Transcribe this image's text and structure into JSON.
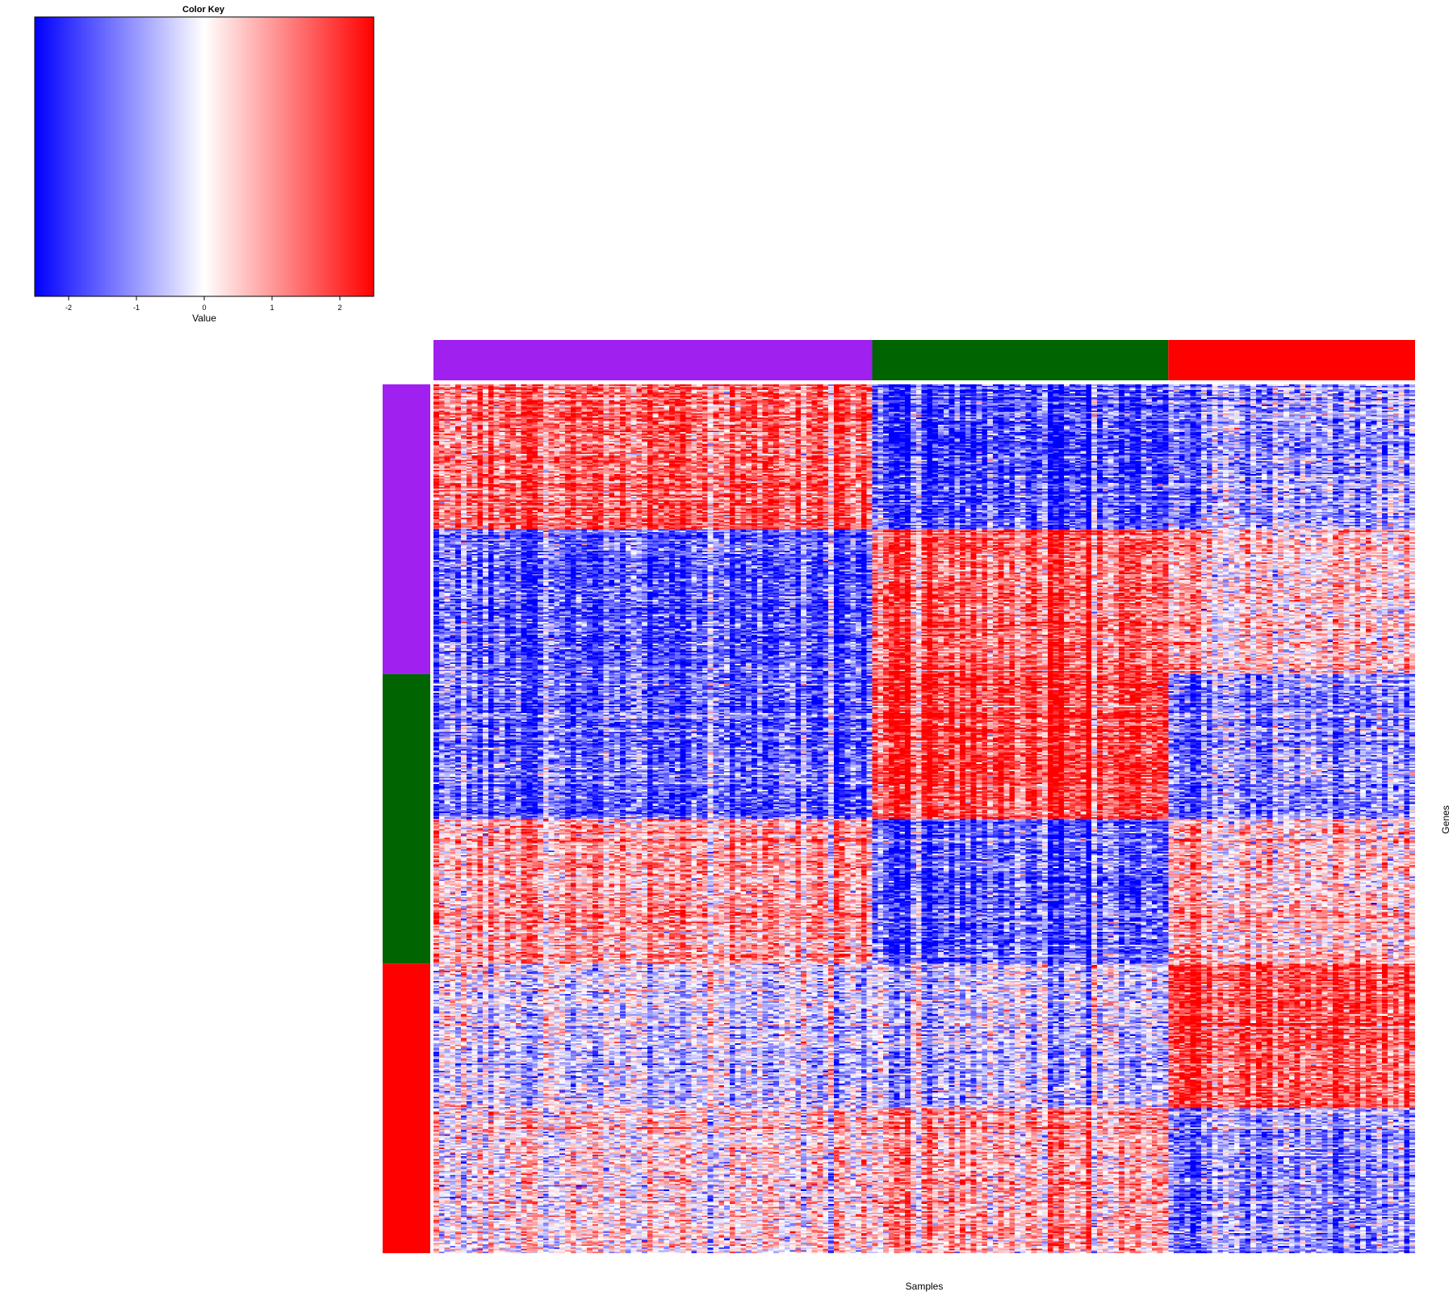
{
  "chart_data": {
    "type": "heatmap",
    "title": "",
    "xlabel": "Samples",
    "ylabel": "Genes",
    "color_key": {
      "title": "Color Key",
      "xlabel": "Value",
      "range": [
        -2.5,
        2.5
      ],
      "ticks": [
        -2,
        -1,
        0,
        1,
        2
      ],
      "tick_labels": [
        "-2",
        "-1",
        "0",
        "1",
        "2"
      ],
      "low_color": "#0000ff",
      "mid_color": "#ffffff",
      "high_color": "#ff0000"
    },
    "column_groups": [
      {
        "name": "purple",
        "color": "#a020f0",
        "n_samples": 80
      },
      {
        "name": "green",
        "color": "#006400",
        "n_samples": 54
      },
      {
        "name": "red",
        "color": "#ff0000",
        "n_samples": 45
      }
    ],
    "row_groups": [
      {
        "name": "purple",
        "color": "#a020f0",
        "n_genes": 200
      },
      {
        "name": "green",
        "color": "#006400",
        "n_genes": 200
      },
      {
        "name": "red",
        "color": "#ff0000",
        "n_genes": 200
      }
    ],
    "row_blocks": [
      {
        "row_group": "purple",
        "n_genes": 100,
        "mean_by_column_group": [
          1.6,
          -1.8,
          -0.9
        ]
      },
      {
        "row_group": "purple",
        "n_genes": 100,
        "mean_by_column_group": [
          -1.6,
          1.6,
          0.5
        ]
      },
      {
        "row_group": "green",
        "n_genes": 100,
        "mean_by_column_group": [
          -1.5,
          2.0,
          -1.1
        ]
      },
      {
        "row_group": "green",
        "n_genes": 100,
        "mean_by_column_group": [
          0.9,
          -1.6,
          0.5
        ]
      },
      {
        "row_group": "red",
        "n_genes": 100,
        "mean_by_column_group": [
          -0.4,
          -0.6,
          1.7
        ]
      },
      {
        "row_group": "red",
        "n_genes": 100,
        "mean_by_column_group": [
          0.2,
          0.8,
          -1.1
        ]
      }
    ]
  }
}
